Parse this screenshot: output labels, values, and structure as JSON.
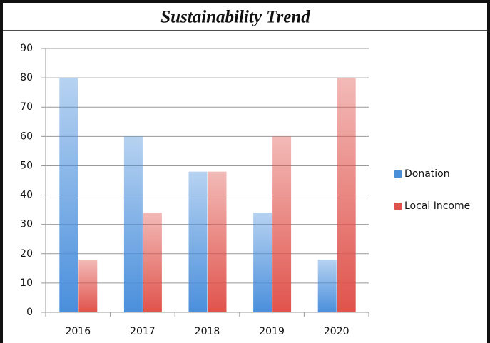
{
  "chart_data": {
    "type": "bar",
    "title": "Sustainability Trend",
    "categories": [
      "2016",
      "2017",
      "2018",
      "2019",
      "2020"
    ],
    "series": [
      {
        "name": "Donation",
        "color": "#4a8fdc",
        "values": [
          80,
          60,
          48,
          34,
          18
        ]
      },
      {
        "name": "Local Income",
        "color": "#e0534c",
        "values": [
          18,
          34,
          48,
          60,
          80
        ]
      }
    ],
    "ylim": [
      0,
      90
    ],
    "yticks": [
      0,
      10,
      20,
      30,
      40,
      50,
      60,
      70,
      80,
      90
    ],
    "grid": true,
    "legend": "right"
  }
}
